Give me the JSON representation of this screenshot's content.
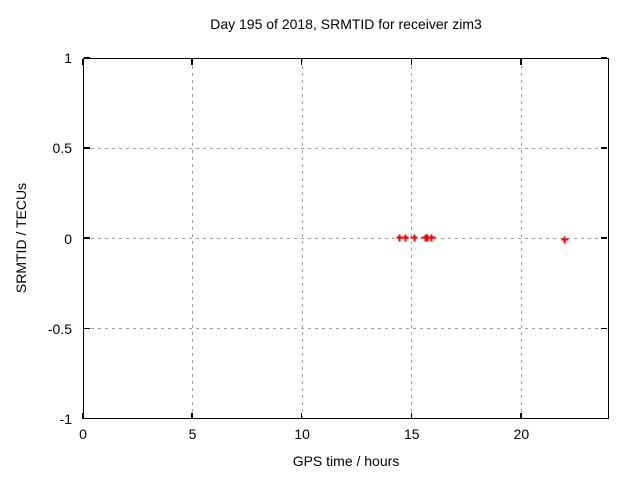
{
  "chart_data": {
    "type": "scatter",
    "title": "Day 195 of 2018, SRMTID for receiver zim3",
    "xlabel": "GPS time / hours",
    "ylabel": "SRMTID / TECUs",
    "xlim": [
      0,
      24
    ],
    "ylim": [
      -1,
      1
    ],
    "x_ticks": [
      0,
      5,
      10,
      15,
      20
    ],
    "x_tick_labels": [
      "0",
      "5",
      "10",
      "15",
      "20"
    ],
    "y_ticks": [
      1,
      0.5,
      0,
      -0.5,
      -1
    ],
    "y_tick_labels": [
      "1",
      "0.5",
      "0",
      "-0.5",
      "-1"
    ],
    "grid": true,
    "grid_x": [
      5,
      10,
      15,
      20
    ],
    "grid_y": [
      0.5,
      0,
      -0.5
    ],
    "legend": "none",
    "marker": "plus",
    "marker_color": "#ff0000",
    "grid_color": "#9c9c9c",
    "series": [
      {
        "name": "SRMTID",
        "points": [
          [
            14.4,
            0.01
          ],
          [
            14.66,
            0.01
          ],
          [
            15.07,
            0.01
          ],
          [
            15.58,
            0.01
          ],
          [
            15.67,
            0.01
          ],
          [
            15.86,
            0.01
          ],
          [
            21.93,
            0.0
          ]
        ]
      }
    ]
  }
}
